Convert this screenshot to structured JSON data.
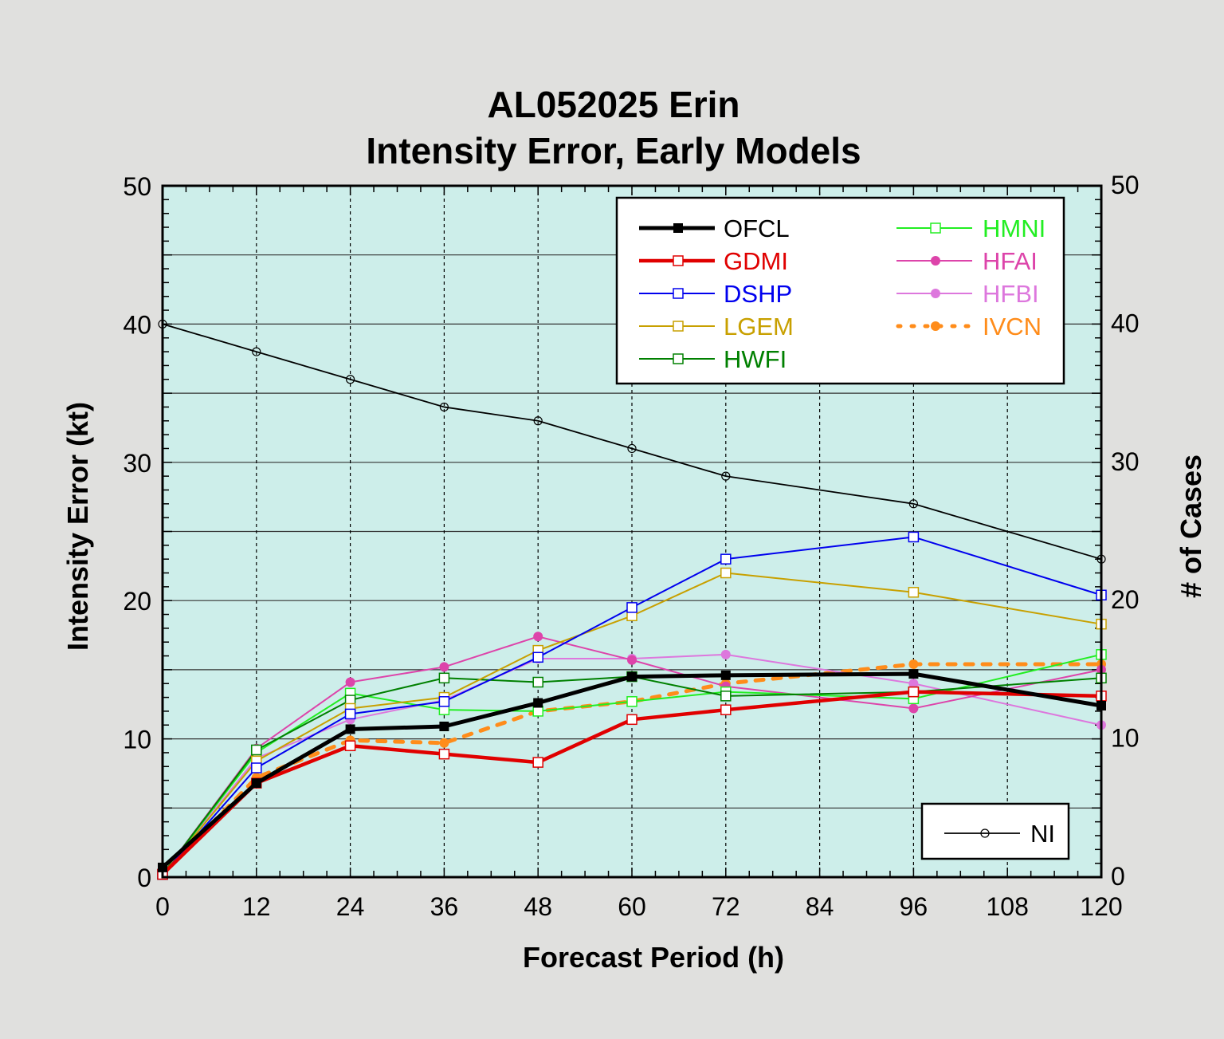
{
  "chart_data": {
    "type": "line",
    "title": "AL052025 Erin",
    "subtitle": "Intensity Error, Early Models",
    "xlabel": "Forecast Period (h)",
    "ylabel": "Intensity Error (kt)",
    "y2label": "# of Cases",
    "x": [
      0,
      12,
      24,
      36,
      48,
      60,
      72,
      96,
      120
    ],
    "xticks": [
      0,
      12,
      24,
      36,
      48,
      60,
      72,
      84,
      96,
      108,
      120
    ],
    "yticks": [
      0,
      10,
      20,
      30,
      40,
      50
    ],
    "xlim": [
      0,
      120
    ],
    "ylim": [
      0,
      50
    ],
    "y2lim": [
      0,
      50
    ],
    "grid": true,
    "plot_background": "#cdeeea",
    "series": [
      {
        "name": "OFCL",
        "color": "#000000",
        "marker": "filled-square",
        "width": 5,
        "values": [
          0.7,
          6.8,
          10.7,
          10.9,
          12.6,
          14.5,
          14.6,
          14.7,
          12.4
        ]
      },
      {
        "name": "GDMI",
        "color": "#e00000",
        "marker": "open-square",
        "width": 4.5,
        "values": [
          0.2,
          6.8,
          9.5,
          8.9,
          8.3,
          11.4,
          12.1,
          13.4,
          13.1
        ]
      },
      {
        "name": "DSHP",
        "color": "#0000ee",
        "marker": "open-square",
        "width": 2,
        "values": [
          0.2,
          7.9,
          11.8,
          12.7,
          15.9,
          19.5,
          23.0,
          24.6,
          20.4
        ]
      },
      {
        "name": "LGEM",
        "color": "#c8a000",
        "marker": "open-square",
        "width": 2,
        "values": [
          0.2,
          8.4,
          12.2,
          13.0,
          16.4,
          18.9,
          22.0,
          20.6,
          18.3
        ]
      },
      {
        "name": "HWFI",
        "color": "#008000",
        "marker": "open-square",
        "width": 2,
        "values": [
          0.2,
          9.2,
          12.8,
          14.4,
          14.1,
          14.5,
          13.1,
          13.4,
          14.4
        ]
      },
      {
        "name": "HMNI",
        "color": "#22ee22",
        "marker": "open-square",
        "width": 2,
        "values": [
          0.2,
          9.0,
          13.3,
          12.1,
          12.0,
          12.7,
          13.4,
          12.9,
          16.1
        ]
      },
      {
        "name": "HFAI",
        "color": "#dd44aa",
        "marker": "filled-circle",
        "width": 2,
        "values": [
          0.2,
          9.3,
          14.1,
          15.2,
          17.4,
          15.7,
          13.8,
          12.2,
          15.0
        ]
      },
      {
        "name": "HFBI",
        "color": "#dd77dd",
        "marker": "filled-circle",
        "width": 2,
        "values": [
          0.2,
          8.6,
          11.4,
          12.8,
          15.8,
          15.8,
          16.1,
          14.0,
          11.0
        ]
      },
      {
        "name": "IVCN",
        "color": "#ff8c1a",
        "marker": "filled-circle",
        "width": 5,
        "dashed": true,
        "values": [
          0.2,
          7.2,
          9.9,
          9.7,
          12.0,
          12.7,
          14.0,
          15.4,
          15.4
        ]
      }
    ],
    "cases_series": {
      "name": "NI",
      "color": "#000000",
      "marker": "open-circle",
      "axis": "right",
      "values": [
        40,
        38,
        36,
        34,
        33,
        31,
        29,
        27,
        23
      ]
    },
    "legend_placement": "top-right",
    "cases_legend_placement": "bottom-right"
  }
}
